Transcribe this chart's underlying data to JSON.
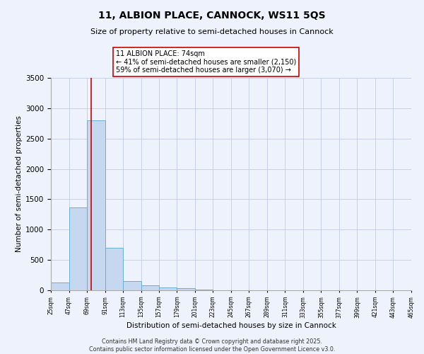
{
  "title": "11, ALBION PLACE, CANNOCK, WS11 5QS",
  "subtitle": "Size of property relative to semi-detached houses in Cannock",
  "xlabel": "Distribution of semi-detached houses by size in Cannock",
  "ylabel": "Number of semi-detached properties",
  "property_size": 74,
  "bin_edges": [
    25,
    47,
    69,
    91,
    113,
    135,
    157,
    179,
    201,
    223,
    245,
    267,
    289,
    311,
    333,
    355,
    377,
    399,
    421,
    443,
    465
  ],
  "bar_heights": [
    130,
    1370,
    2800,
    700,
    150,
    80,
    45,
    30,
    8,
    0,
    0,
    0,
    0,
    0,
    0,
    0,
    0,
    0,
    0,
    0
  ],
  "bar_color": "#c5d8f0",
  "bar_edge_color": "#6baed6",
  "red_line_color": "#cc0000",
  "annotation_text": "11 ALBION PLACE: 74sqm\n← 41% of semi-detached houses are smaller (2,150)\n59% of semi-detached houses are larger (3,070) →",
  "annotation_box_color": "#ffffff",
  "annotation_box_edge": "#cc0000",
  "ylim": [
    0,
    3500
  ],
  "background_color": "#eef2fc",
  "grid_color": "#c8d0e8",
  "footer_line1": "Contains HM Land Registry data © Crown copyright and database right 2025.",
  "footer_line2": "Contains public sector information licensed under the Open Government Licence v3.0.",
  "tick_labels": [
    "25sqm",
    "47sqm",
    "69sqm",
    "91sqm",
    "113sqm",
    "135sqm",
    "157sqm",
    "179sqm",
    "201sqm",
    "223sqm",
    "245sqm",
    "267sqm",
    "289sqm",
    "311sqm",
    "333sqm",
    "355sqm",
    "377sqm",
    "399sqm",
    "421sqm",
    "443sqm",
    "465sqm"
  ],
  "yticks": [
    0,
    500,
    1000,
    1500,
    2000,
    2500,
    3000,
    3500
  ]
}
